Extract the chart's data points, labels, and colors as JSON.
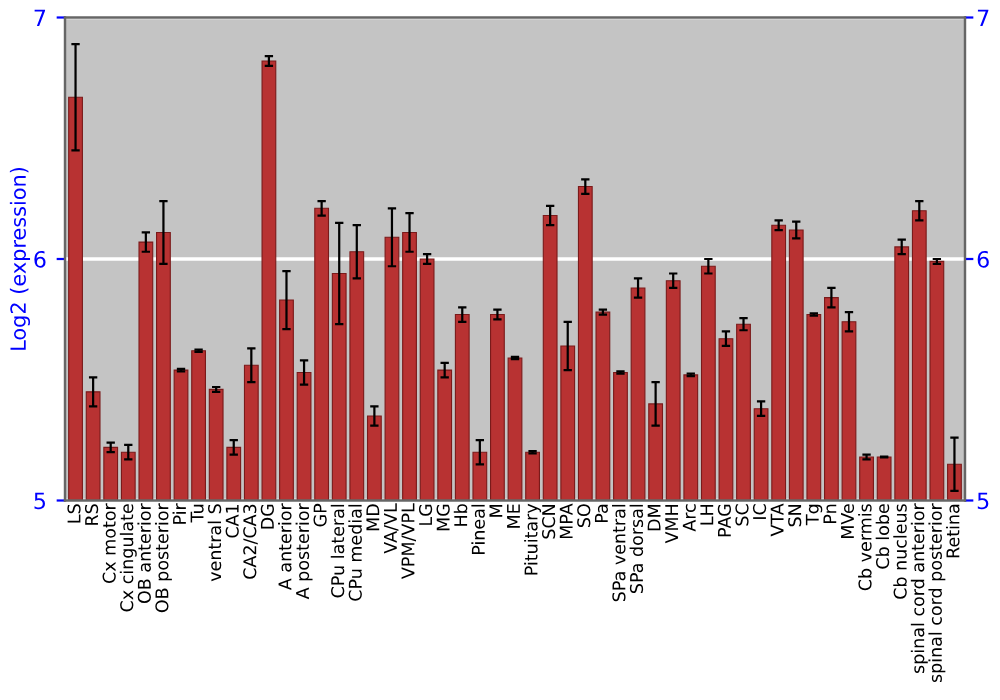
{
  "chart_data": {
    "type": "bar",
    "ylabel": "Log2 (expression)",
    "categories": [
      "LS",
      "RS",
      "Cx motor",
      "Cx cingulate",
      "OB anterior",
      "OB posterior",
      "Pir",
      "Tu",
      "ventral S",
      "CA1",
      "CA2/CA3",
      "DG",
      "A anterior",
      "A posterior",
      "GP",
      "CPu lateral",
      "CPu medial",
      "MD",
      "VA/VL",
      "VPM/VPL",
      "LG",
      "MG",
      "Hb",
      "Pineal",
      "M",
      "ME",
      "Pituitary",
      "SCN",
      "MPA",
      "SO",
      "Pa",
      "SPa ventral",
      "SPa dorsal",
      "DM",
      "VMH",
      "Arc",
      "LH",
      "PAG",
      "SC",
      "IC",
      "VTA",
      "SN",
      "Tg",
      "Pn",
      "MVe",
      "Cb vermis",
      "Cb lobe",
      "Cb nucleus",
      "spinal cord anterior",
      "spinal cord posterior",
      "Retina"
    ],
    "values": [
      6.67,
      5.45,
      5.22,
      5.2,
      6.07,
      6.11,
      5.54,
      5.62,
      5.46,
      5.22,
      5.56,
      6.82,
      5.83,
      5.53,
      6.21,
      5.94,
      6.03,
      5.35,
      6.09,
      6.11,
      6.0,
      5.54,
      5.77,
      5.2,
      5.77,
      5.59,
      5.2,
      6.18,
      5.64,
      6.3,
      5.78,
      5.53,
      5.88,
      5.4,
      5.91,
      5.52,
      5.97,
      5.67,
      5.73,
      5.38,
      6.14,
      6.12,
      5.77,
      5.84,
      5.74,
      5.18,
      5.18,
      6.05,
      6.2,
      5.99,
      5.15
    ],
    "errors": [
      0.22,
      0.06,
      0.02,
      0.03,
      0.04,
      0.13,
      0.005,
      0.005,
      0.01,
      0.03,
      0.07,
      0.02,
      0.12,
      0.05,
      0.03,
      0.21,
      0.11,
      0.04,
      0.12,
      0.08,
      0.02,
      0.03,
      0.03,
      0.05,
      0.02,
      0.005,
      0.005,
      0.04,
      0.1,
      0.03,
      0.01,
      0.005,
      0.04,
      0.09,
      0.03,
      0.005,
      0.03,
      0.03,
      0.025,
      0.03,
      0.02,
      0.035,
      0.005,
      0.04,
      0.04,
      0.01,
      0.002,
      0.03,
      0.04,
      0.01,
      0.11
    ],
    "color": "#b83232",
    "ylim": [
      5,
      7
    ],
    "yticks": [
      5,
      6,
      7
    ],
    "y2lim": [
      5,
      7
    ],
    "y2ticks": [
      5,
      6,
      7
    ],
    "grid": "y"
  }
}
